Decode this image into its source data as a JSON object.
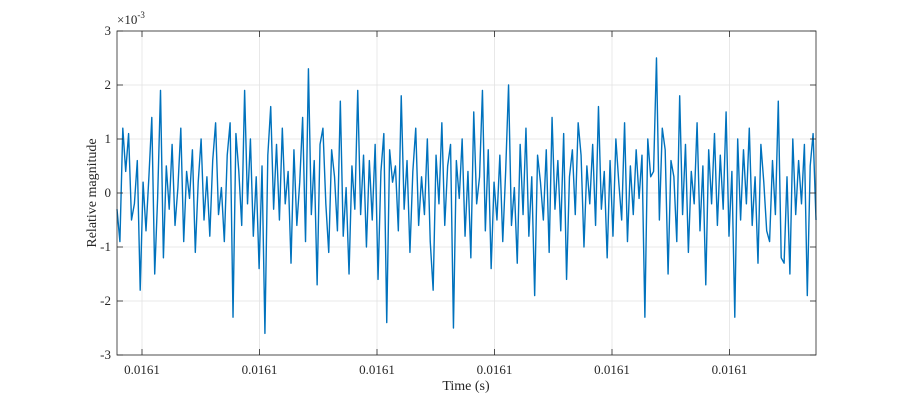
{
  "chart_data": {
    "type": "line",
    "title": "",
    "xlabel": "Time (s)",
    "ylabel": "Relative magnitude",
    "y_multiplier": "×10",
    "y_exponent": "-3",
    "x_ticks": [
      "0.0161",
      "0.0161",
      "0.0161",
      "0.0161",
      "0.0161",
      "0.0161"
    ],
    "y_ticks": [
      -3,
      -2,
      -1,
      0,
      1,
      2,
      3
    ],
    "ylim": [
      -3,
      3
    ],
    "grid": true,
    "legend": "none",
    "series_color": "#0072BD",
    "series": [
      {
        "values": [
          -0.3,
          -0.9,
          1.2,
          0.4,
          1.1,
          -0.5,
          -0.2,
          0.6,
          -1.8,
          0.2,
          -0.7,
          0.3,
          1.4,
          -1.5,
          -0.1,
          1.9,
          -1.2,
          0.5,
          -0.3,
          0.9,
          -0.6,
          0.1,
          1.2,
          -0.9,
          0.4,
          -0.1,
          0.8,
          -1.1,
          0.2,
          1.0,
          -0.5,
          0.3,
          -0.8,
          0.6,
          1.3,
          -0.4,
          0.1,
          -0.9,
          0.7,
          1.3,
          -2.3,
          1.1,
          0.4,
          -0.6,
          1.9,
          -0.2,
          1.0,
          -0.8,
          0.3,
          -1.4,
          0.5,
          -2.6,
          0.7,
          1.6,
          -0.3,
          0.9,
          -0.5,
          1.2,
          -0.2,
          0.4,
          -1.3,
          0.8,
          -0.6,
          0.2,
          1.4,
          -0.9,
          2.3,
          -0.4,
          0.6,
          -1.7,
          0.9,
          1.2,
          -0.2,
          -1.1,
          0.8,
          0.3,
          -0.7,
          1.7,
          -0.8,
          0.1,
          -1.5,
          0.5,
          -0.3,
          1.9,
          -0.4,
          0.7,
          -1.0,
          0.6,
          -0.5,
          0.9,
          -1.6,
          0.4,
          1.1,
          -2.4,
          0.8,
          0.2,
          0.5,
          -0.7,
          1.8,
          -0.3,
          0.6,
          -1.1,
          0.4,
          1.2,
          -0.6,
          0.3,
          -0.4,
          1.0,
          -0.9,
          -1.8,
          0.7,
          -0.2,
          1.3,
          -0.6,
          0.5,
          0.9,
          -2.5,
          0.6,
          -0.1,
          1.0,
          -0.8,
          0.4,
          -1.2,
          1.5,
          -0.2,
          0.3,
          1.9,
          -0.7,
          0.8,
          -1.4,
          0.2,
          -0.5,
          0.7,
          -0.9,
          0.4,
          2.0,
          -0.6,
          0.1,
          -1.3,
          0.9,
          -0.4,
          1.2,
          -0.8,
          0.3,
          -1.9,
          0.7,
          0.2,
          -0.5,
          0.8,
          -1.1,
          1.4,
          -0.3,
          0.6,
          -0.7,
          1.1,
          -1.6,
          0.3,
          0.8,
          -0.4,
          1.3,
          0.7,
          -1.0,
          0.5,
          -0.2,
          0.9,
          -0.6,
          1.6,
          -0.3,
          0.4,
          -1.2,
          0.6,
          -0.8,
          1.0,
          0.2,
          -0.5,
          1.3,
          -0.9,
          0.5,
          -0.4,
          0.8,
          -0.1,
          0.7,
          -2.3,
          1.0,
          0.3,
          0.4,
          2.5,
          -0.5,
          1.2,
          0.8,
          -1.5,
          0.6,
          0.3,
          -0.9,
          1.8,
          -0.4,
          0.9,
          -1.1,
          0.4,
          -0.2,
          1.3,
          -0.7,
          0.5,
          -1.7,
          0.8,
          -0.2,
          1.1,
          -0.6,
          0.7,
          -0.3,
          1.5,
          -0.8,
          0.4,
          -2.3,
          1.0,
          -0.5,
          0.8,
          -0.2,
          1.2,
          -0.6,
          0.3,
          -1.3,
          0.9,
          0.2,
          -0.7,
          -0.9,
          0.6,
          -0.4,
          1.7,
          -1.2,
          -1.3,
          0.3,
          -1.5,
          1.0,
          -0.4,
          0.6,
          -0.2,
          0.9,
          -1.9,
          0.5,
          1.1,
          -0.5
        ]
      }
    ]
  }
}
